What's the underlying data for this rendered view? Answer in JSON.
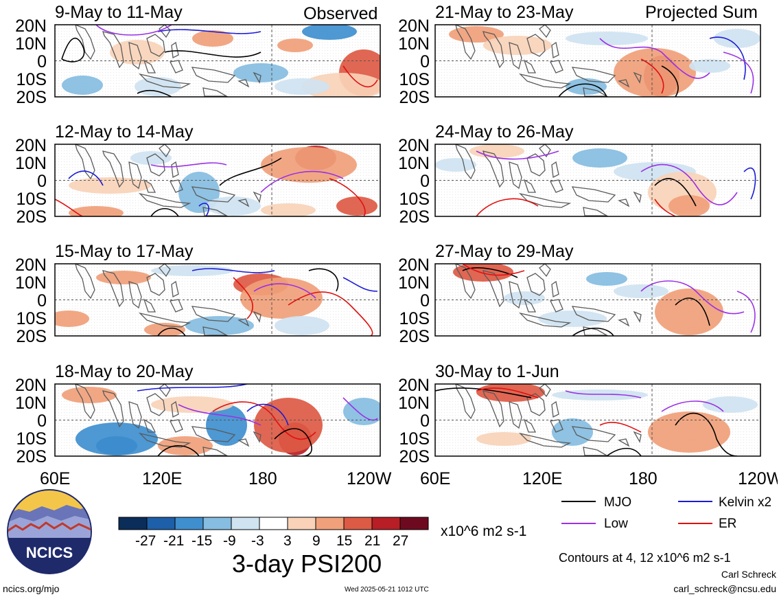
{
  "panels": [
    {
      "id": "p1",
      "title": "9-May to 11-May",
      "corner_label": "Observed"
    },
    {
      "id": "p2",
      "title": "21-May to 23-May",
      "corner_label": "Projected Sum"
    },
    {
      "id": "p3",
      "title": "12-May to 14-May",
      "corner_label": ""
    },
    {
      "id": "p4",
      "title": "24-May to 26-May",
      "corner_label": ""
    },
    {
      "id": "p5",
      "title": "15-May to 17-May",
      "corner_label": ""
    },
    {
      "id": "p6",
      "title": "27-May to 29-May",
      "corner_label": ""
    },
    {
      "id": "p7",
      "title": "18-May to 20-May",
      "corner_label": ""
    },
    {
      "id": "p8",
      "title": "30-May to 1-Jun",
      "corner_label": ""
    }
  ],
  "lat_labels": [
    "20N",
    "10N",
    "0",
    "10S",
    "20S"
  ],
  "lon_labels": [
    "60E",
    "120E",
    "180",
    "120W"
  ],
  "colorbar": {
    "ticks": [
      "-27",
      "-21",
      "-15",
      "-9",
      "-3",
      "3",
      "9",
      "15",
      "21",
      "27"
    ],
    "units": "x10^6 m2 s-1",
    "colors": [
      "#0a2d59",
      "#1d5fa8",
      "#3f8fcf",
      "#86bde1",
      "#cfe3f1",
      "#ffffff",
      "#f9d2b8",
      "#f0a07a",
      "#dd5a44",
      "#b81e25",
      "#6e0a1f"
    ]
  },
  "title": "3-day PSI200",
  "legend": [
    {
      "label": "MJO",
      "color": "#000000"
    },
    {
      "label": "Kelvin x2",
      "color": "#1a1ad6"
    },
    {
      "label": "Low",
      "color": "#9b30e6"
    },
    {
      "label": "ER",
      "color": "#e01010"
    }
  ],
  "contour_note": "Contours at 4, 12 x10^6 m2 s-1",
  "author": "Carl Schreck",
  "email": "carl_schreck@ncsu.edu",
  "website": "ncics.org/mjo",
  "timestamp": "Wed 2025-05-21 1012 UTC",
  "logo_text": "NCICS"
}
